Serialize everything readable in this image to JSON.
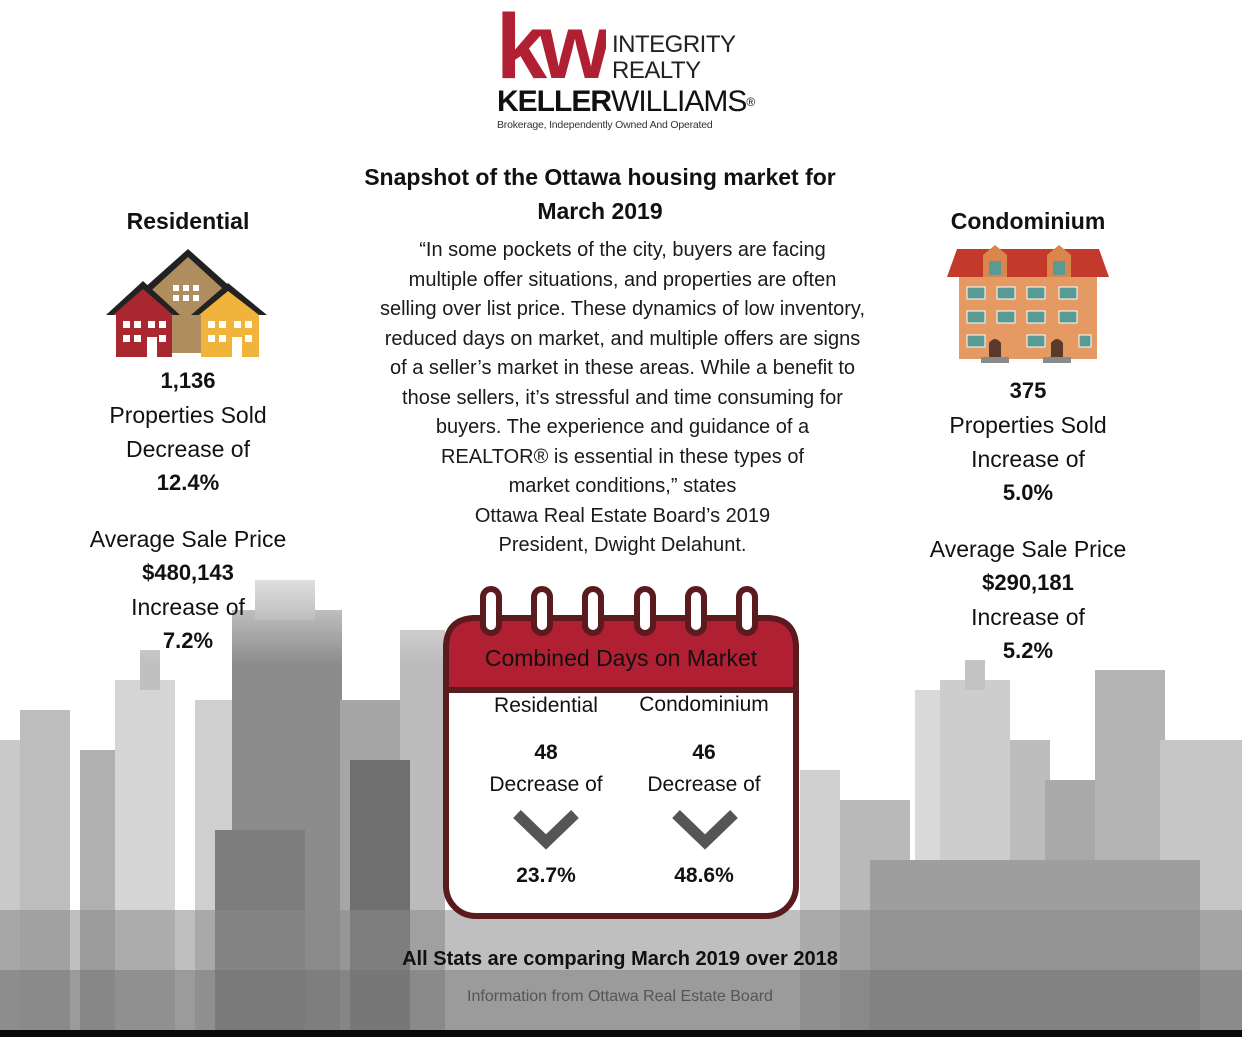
{
  "logo": {
    "kw": "kw",
    "integrity": "INTEGRITY",
    "realty": "REALTY",
    "keller": "KELLER",
    "williams": "WILLIAMS",
    "registered": "®",
    "tagline": "Brokerage, Independently Owned And Operated",
    "brand_color": "#b11f32"
  },
  "headline": {
    "line1": "Snapshot of the Ottawa housing market for",
    "line2": "March 2019"
  },
  "quote": {
    "lines": [
      "“In some pockets of the city, buyers are facing",
      "multiple offer situations, and properties are often",
      "selling over list price. These dynamics of low inventory,",
      "reduced days on market, and multiple offers are signs",
      "of a seller’s market in these areas. While a benefit to",
      "those sellers, it’s stressful and time consuming for",
      "buyers. The experience and guidance of a",
      "REALTOR® is essential in these types of",
      "market conditions,” states",
      "Ottawa Real Estate Board’s 2019",
      "President, Dwight Delahunt."
    ]
  },
  "residential": {
    "heading": "Residential",
    "icon": "houses-icon",
    "sold_count": "1,136",
    "sold_label": "Properties Sold",
    "sold_change_label": "Decrease of",
    "sold_change": "12.4%",
    "price_label": "Average Sale Price",
    "price": "$480,143",
    "price_change_label": "Increase of",
    "price_change": "7.2%"
  },
  "condominium": {
    "heading": "Condominium",
    "icon": "condo-building-icon",
    "sold_count": "375",
    "sold_label": "Properties Sold",
    "sold_change_label": "Increase of",
    "sold_change": "5.0%",
    "price_label": "Average Sale Price",
    "price": "$290,181",
    "price_change_label": "Increase of",
    "price_change": "5.2%"
  },
  "calendar": {
    "title": "Combined Days on Market",
    "accent": "#b11f32",
    "border": "#5a1a1e",
    "residential": {
      "label": "Residential",
      "days": "48",
      "change_label": "Decrease of",
      "change": "23.7%",
      "icon": "chevron-down-icon"
    },
    "condominium": {
      "label": "Condominium",
      "days": "46",
      "change_label": "Decrease of",
      "change": "48.6%",
      "icon": "chevron-down-icon"
    }
  },
  "footer": {
    "comparison": "All Stats are comparing March 2019 over 2018",
    "source": "Information from Ottawa Real Estate Board"
  }
}
